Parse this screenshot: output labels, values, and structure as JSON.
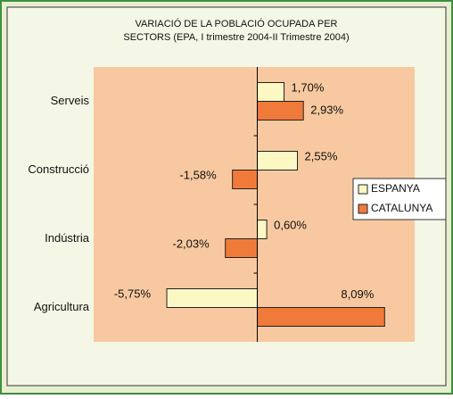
{
  "chart_data": {
    "type": "hbar",
    "title": [
      "VARIACIÓ DE LA POBLACIÓ OCUPADA PER",
      "SECTORS (EPA, I trimestre 2004-II Trimestre 2004)"
    ],
    "categories": [
      "Serveis",
      "Construcció",
      "Indústria",
      "Agricultura"
    ],
    "series": [
      {
        "name": "ESPANYA",
        "color": "#fbf8c4",
        "values": [
          1.7,
          2.55,
          0.6,
          -5.75
        ],
        "value_labels": [
          "1,70%",
          "2,55%",
          "0,60%",
          "-5,75%"
        ]
      },
      {
        "name": "CATALUNYA",
        "color": "#f07a3a",
        "values": [
          2.93,
          -1.58,
          -2.03,
          8.09
        ],
        "value_labels": [
          "2,93%",
          "-1,58%",
          "-2,03%",
          "8,09%"
        ]
      }
    ],
    "xlim": [
      -10.4,
      10.0
    ],
    "legend": "right"
  }
}
